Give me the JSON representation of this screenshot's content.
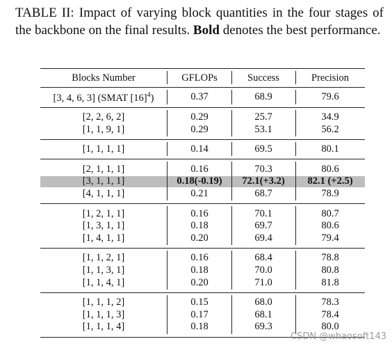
{
  "caption": {
    "label": "TABLE II:",
    "text": "Impact of varying block quantities in the four stages of the backbone on the final results.",
    "bold": "Bold",
    "rest": "denotes the best performance."
  },
  "table": {
    "headers": [
      "Blocks Number",
      "GFLOPs",
      "Success",
      "Precision"
    ],
    "groups": [
      [
        {
          "cells": [
            {
              "text": "[3, 4, 6, 3] (SMAT [16]",
              "sup": "4",
              "end": ")"
            },
            "0.37",
            "68.9",
            "79.6"
          ]
        }
      ],
      [
        {
          "cells": [
            "[2, 2, 6, 2]",
            "0.29",
            "25.7",
            "34.9"
          ]
        },
        {
          "cells": [
            "[1, 1, 9, 1]",
            "0.29",
            "53.1",
            "56.2"
          ]
        }
      ],
      [
        {
          "cells": [
            "[1, 1, 1, 1]",
            "0.14",
            "69.5",
            "80.1"
          ]
        }
      ],
      [
        {
          "cells": [
            "[2, 1, 1, 1]",
            "0.16",
            "70.3",
            "80.6"
          ]
        },
        {
          "cells": [
            "[3, 1, 1, 1]",
            "0.18(-0.19)",
            "72.1(+3.2)",
            "82.1 (+2.5)"
          ],
          "highlighted": true
        },
        {
          "cells": [
            "[4, 1, 1, 1]",
            "0.21",
            "68.7",
            "78.9"
          ]
        }
      ],
      [
        {
          "cells": [
            "[1, 2, 1, 1]",
            "0.16",
            "70.1",
            "80.7"
          ]
        },
        {
          "cells": [
            "[1, 3, 1, 1]",
            "0.18",
            "69.7",
            "80.6"
          ]
        },
        {
          "cells": [
            "[1, 4, 1, 1]",
            "0.20",
            "69.4",
            "79.4"
          ]
        }
      ],
      [
        {
          "cells": [
            "[1, 1, 2, 1]",
            "0.16",
            "68.4",
            "78.8"
          ]
        },
        {
          "cells": [
            "[1, 1, 3, 1]",
            "0.18",
            "70.0",
            "80.8"
          ]
        },
        {
          "cells": [
            "[1, 1, 4, 1]",
            "0.20",
            "71.0",
            "81.8"
          ]
        }
      ],
      [
        {
          "cells": [
            "[1, 1, 1, 2]",
            "0.15",
            "68.0",
            "78.3"
          ]
        },
        {
          "cells": [
            "[1, 1, 1, 3]",
            "0.17",
            "68.1",
            "78.4"
          ]
        },
        {
          "cells": [
            "[1, 1, 1, 4]",
            "0.18",
            "69.3",
            "80.0"
          ]
        }
      ]
    ]
  },
  "watermark": "CSDN @whaosoft143"
}
